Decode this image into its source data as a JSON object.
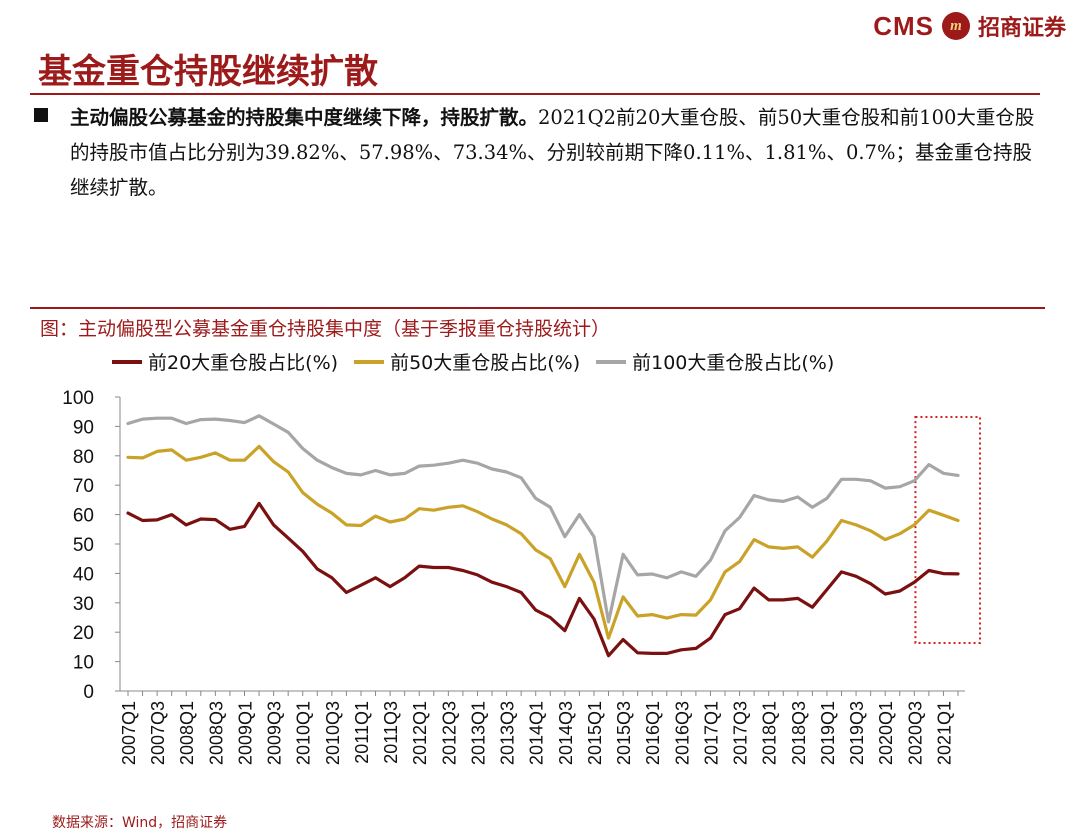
{
  "header": {
    "logo_text": "CMS",
    "logo_badge_text": "m",
    "logo_cn": "招商证券"
  },
  "page": {
    "title": "基金重仓持股继续扩散"
  },
  "bullet": {
    "bold_text": "主动偏股公募基金的持股集中度继续下降，持股扩散。",
    "rest_text": "2021Q2前20大重仓股、前50大重仓股和前100大重仓股的持股市值占比分别为39.82%、57.98%、73.34%、分别较前期下降0.11%、1.81%、0.7%；基金重仓持股继续扩散。"
  },
  "chart": {
    "caption": "图：主动偏股型公募基金重仓持股集中度（基于季报重仓持股统计）"
  },
  "source": {
    "text": "数据来源：Wind，招商证券"
  },
  "colors": {
    "brand": "#9c1a1a",
    "series_top20": "#7a1010",
    "series_top50": "#c9a227",
    "series_top100": "#a6a6a6",
    "highlight_box": "#d42020"
  },
  "chart_data": {
    "type": "line",
    "ylim": [
      0,
      100
    ],
    "yticks": [
      0,
      10,
      20,
      30,
      40,
      50,
      60,
      70,
      80,
      90,
      100
    ],
    "grid": false,
    "legend": "top",
    "categories": [
      "2007Q1",
      "2007Q2",
      "2007Q3",
      "2007Q4",
      "2008Q1",
      "2008Q2",
      "2008Q3",
      "2008Q4",
      "2009Q1",
      "2009Q2",
      "2009Q3",
      "2009Q4",
      "2010Q1",
      "2010Q2",
      "2010Q3",
      "2010Q4",
      "2011Q1",
      "2011Q2",
      "2011Q3",
      "2011Q4",
      "2012Q1",
      "2012Q2",
      "2012Q3",
      "2012Q4",
      "2013Q1",
      "2013Q2",
      "2013Q3",
      "2013Q4",
      "2014Q1",
      "2014Q2",
      "2014Q3",
      "2014Q4",
      "2015Q1",
      "2015Q2",
      "2015Q3",
      "2015Q4",
      "2016Q1",
      "2016Q2",
      "2016Q3",
      "2016Q4",
      "2017Q1",
      "2017Q2",
      "2017Q3",
      "2017Q4",
      "2018Q1",
      "2018Q2",
      "2018Q3",
      "2018Q4",
      "2019Q1",
      "2019Q2",
      "2019Q3",
      "2019Q4",
      "2020Q1",
      "2020Q2",
      "2020Q3",
      "2020Q4",
      "2021Q1",
      "2021Q2"
    ],
    "xtick_labels": [
      "2007Q1",
      "2007Q3",
      "2008Q1",
      "2008Q3",
      "2009Q1",
      "2009Q3",
      "2010Q1",
      "2010Q3",
      "2011Q1",
      "2011Q3",
      "2012Q1",
      "2012Q3",
      "2013Q1",
      "2013Q3",
      "2014Q1",
      "2014Q3",
      "2015Q1",
      "2015Q3",
      "2016Q1",
      "2016Q3",
      "2017Q1",
      "2017Q3",
      "2018Q1",
      "2018Q3",
      "2019Q1",
      "2019Q3",
      "2020Q1",
      "2020Q3",
      "2021Q1"
    ],
    "highlight": {
      "from": "2021Q1",
      "to": "2021Q2",
      "style": "dotted-box"
    },
    "series": [
      {
        "name": "前20大重仓股占比(%)",
        "color": "#7a1010",
        "values": [
          60.5,
          58.0,
          58.2,
          60.0,
          56.5,
          58.5,
          58.3,
          55.0,
          56.0,
          63.8,
          56.5,
          52.0,
          47.5,
          41.5,
          38.5,
          33.5,
          36.0,
          38.5,
          35.5,
          38.5,
          42.5,
          42.0,
          42.0,
          41.0,
          39.5,
          37.0,
          35.5,
          33.5,
          27.5,
          25.0,
          20.5,
          31.5,
          24.5,
          12.0,
          17.5,
          13.0,
          12.8,
          12.8,
          14.0,
          14.5,
          18.0,
          26.0,
          28.0,
          35.0,
          31.0,
          31.0,
          31.5,
          28.5,
          34.5,
          40.5,
          39.0,
          36.5,
          33.0,
          34.0,
          37.0,
          41.0,
          39.93,
          39.82
        ]
      },
      {
        "name": "前50大重仓股占比(%)",
        "color": "#c9a227",
        "values": [
          79.5,
          79.3,
          81.5,
          82.0,
          78.5,
          79.5,
          81.0,
          78.5,
          78.5,
          83.2,
          78.0,
          74.5,
          67.5,
          63.5,
          60.5,
          56.5,
          56.3,
          59.5,
          57.5,
          58.5,
          62.0,
          61.5,
          62.5,
          63.0,
          61.0,
          58.5,
          56.5,
          53.5,
          48.0,
          45.0,
          35.5,
          46.5,
          37.0,
          18.0,
          32.0,
          25.5,
          26.0,
          24.8,
          26.0,
          25.8,
          31.0,
          40.5,
          44.0,
          51.5,
          49.0,
          48.5,
          49.0,
          45.5,
          51.0,
          58.0,
          56.5,
          54.5,
          51.5,
          53.5,
          56.5,
          61.5,
          59.79,
          57.98
        ]
      },
      {
        "name": "前100大重仓股占比(%)",
        "color": "#a6a6a6",
        "values": [
          91.0,
          92.5,
          92.8,
          92.8,
          91.0,
          92.3,
          92.5,
          92.0,
          91.3,
          93.6,
          90.8,
          88.0,
          82.5,
          78.5,
          76.0,
          74.0,
          73.5,
          75.0,
          73.5,
          74.0,
          76.5,
          76.8,
          77.5,
          78.5,
          77.5,
          75.5,
          74.5,
          72.5,
          65.5,
          62.5,
          52.5,
          60.0,
          52.5,
          23.5,
          46.5,
          39.5,
          39.8,
          38.5,
          40.5,
          39.0,
          44.5,
          54.5,
          59.0,
          66.5,
          65.0,
          64.5,
          66.0,
          62.5,
          65.5,
          72.0,
          72.0,
          71.5,
          69.0,
          69.5,
          71.5,
          77.0,
          74.04,
          73.34
        ]
      }
    ]
  }
}
